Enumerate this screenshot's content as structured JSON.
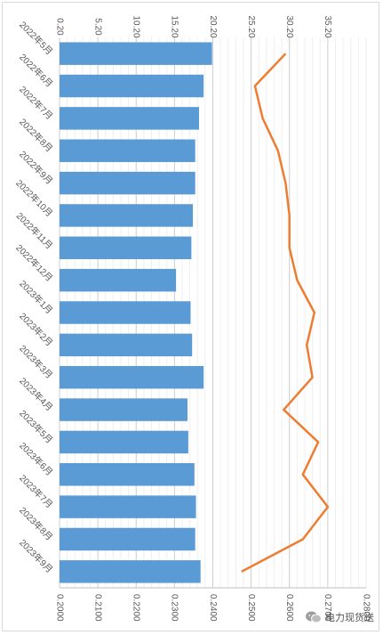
{
  "chart_data": {
    "type": "bar+line",
    "orientation": "rotated-90-clockwise",
    "categories": [
      "2022年5月",
      "2022年6月",
      "2022年7月",
      "2022年8月",
      "2022年9月",
      "2022年10月",
      "2022年11月",
      "2022年12月",
      "2023年1月",
      "2023年2月",
      "2023年3月",
      "2023年4月",
      "2023年5月",
      "2023年6月",
      "2023年7月",
      "2023年8月",
      "2023年9月"
    ],
    "series": [
      {
        "type": "bar",
        "axis": "primary",
        "color": "#5b9bd5",
        "values": [
          20.1,
          19.0,
          18.4,
          17.9,
          17.9,
          17.6,
          17.4,
          15.4,
          17.3,
          17.5,
          19.0,
          16.9,
          17.0,
          17.8,
          18.0,
          17.9,
          18.6
        ]
      },
      {
        "type": "line",
        "axis": "secondary",
        "color": "#ed7d31",
        "values": [
          0.259,
          0.251,
          0.253,
          0.257,
          0.259,
          0.26,
          0.26,
          0.262,
          0.2665,
          0.2645,
          0.266,
          0.2585,
          0.2675,
          0.2635,
          0.27,
          0.2635,
          0.2475
        ]
      }
    ],
    "primary_axis": {
      "ticks": [
        "0.20",
        "5.20",
        "10.20",
        "15.20",
        "20.20",
        "25.20",
        "30.20",
        "35.20"
      ],
      "range": [
        0.2,
        40.2
      ]
    },
    "secondary_axis": {
      "ticks": [
        "0.2000",
        "0.2100",
        "0.2200",
        "0.2300",
        "0.2400",
        "0.2500",
        "0.2600",
        "0.2700",
        "0.2800"
      ],
      "range": [
        0.2,
        0.28
      ]
    },
    "grid": true,
    "legend": "none"
  },
  "watermark": {
    "text": "电力现货送",
    "icon": "wechat-icon"
  }
}
